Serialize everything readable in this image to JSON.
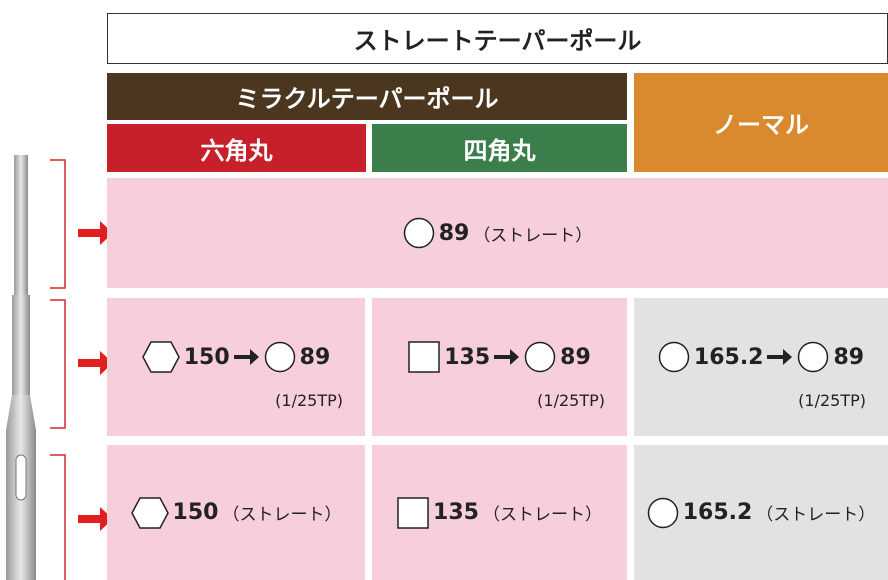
{
  "header": {
    "title": "ストレートテーパーポール"
  },
  "columns": {
    "miracle": "ミラクルテーパーポール",
    "normal": "ノーマル",
    "hex": "六角丸",
    "square": "四角丸"
  },
  "rows": [
    {
      "value": "89",
      "note": "（ストレート）"
    },
    {
      "cells": [
        {
          "from": "150",
          "to": "89",
          "note": "(1/25TP)"
        },
        {
          "from": "135",
          "to": "89",
          "note": "(1/25TP)"
        },
        {
          "from": "165.2",
          "to": "89",
          "note": "(1/25TP)"
        }
      ]
    },
    {
      "cells": [
        {
          "value": "150",
          "note": "（ストレート）"
        },
        {
          "value": "135",
          "note": "（ストレート）"
        },
        {
          "value": "165.2",
          "note": "（ストレート）"
        }
      ]
    }
  ]
}
